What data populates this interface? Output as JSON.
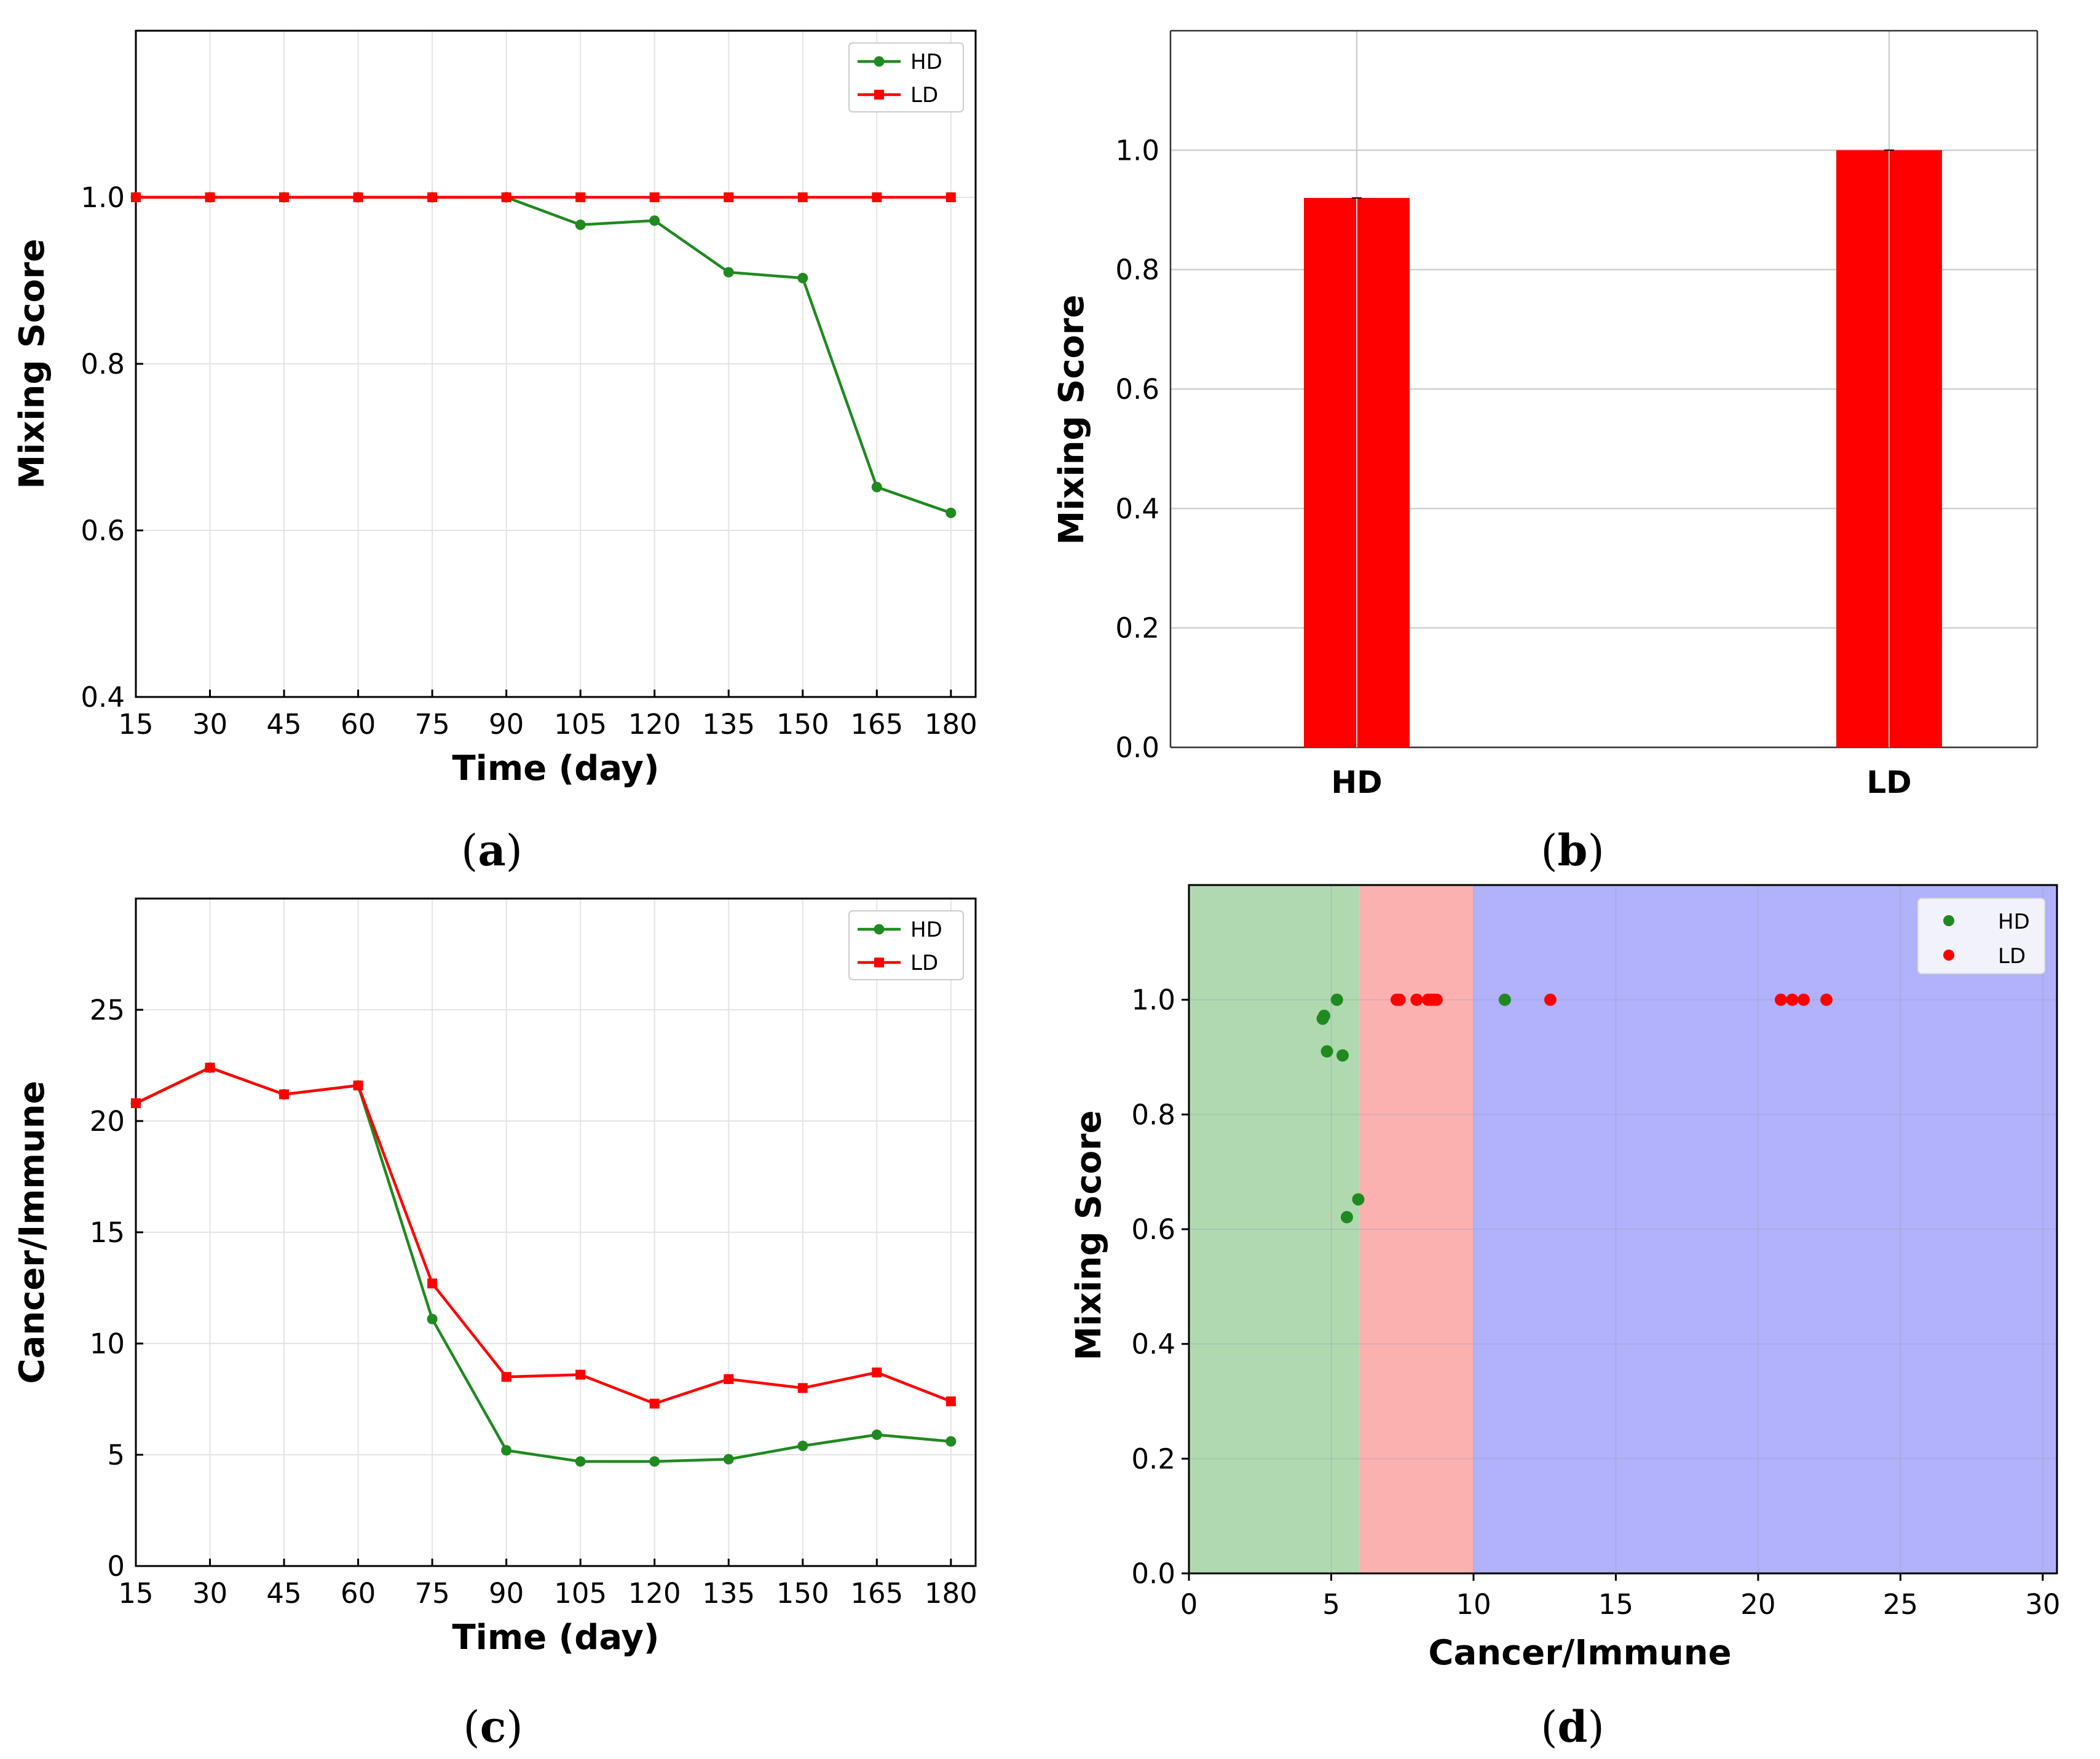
{
  "colors": {
    "hd": "#1f8a1f",
    "ld": "#ff0000",
    "bar": "#ff0000",
    "region_green": "#b0d9b0",
    "region_red": "#fcb1b1",
    "region_blue": "#b1b1fc",
    "grid": "#e3e3e3"
  },
  "panel_labels": {
    "a": {
      "open": "(",
      "letter": "a",
      "close": ")"
    },
    "b": {
      "open": "(",
      "letter": "b",
      "close": ")"
    },
    "c": {
      "open": "(",
      "letter": "c",
      "close": ")"
    },
    "d": {
      "open": "(",
      "letter": "d",
      "close": ")"
    }
  },
  "chart_data": [
    {
      "id": "a",
      "type": "line",
      "title": "",
      "xlabel": "Time (day)",
      "ylabel": "Mixing Score",
      "x": [
        15,
        30,
        45,
        60,
        75,
        90,
        105,
        120,
        135,
        150,
        165,
        180
      ],
      "xticks": [
        "15",
        "30",
        "45",
        "60",
        "75",
        "90",
        "105",
        "120",
        "135",
        "150",
        "165",
        "180"
      ],
      "xlim": [
        15,
        185
      ],
      "ylim": [
        0.4,
        1.2
      ],
      "yticks": [
        "0.4",
        "0.6",
        "0.8",
        "1.0"
      ],
      "ytick_values": [
        0.4,
        0.6,
        0.8,
        1.0
      ],
      "grid": true,
      "legend_position": "top-right",
      "series": [
        {
          "name": "HD",
          "color": "#1f8a1f",
          "marker": "circle",
          "values": [
            1.0,
            1.0,
            1.0,
            1.0,
            1.0,
            1.0,
            0.967,
            0.972,
            0.91,
            0.903,
            0.652,
            0.621
          ]
        },
        {
          "name": "LD",
          "color": "#ff0000",
          "marker": "square",
          "values": [
            1.0,
            1.0,
            1.0,
            1.0,
            1.0,
            1.0,
            1.0,
            1.0,
            1.0,
            1.0,
            1.0,
            1.0
          ]
        }
      ]
    },
    {
      "id": "b",
      "type": "bar",
      "title": "",
      "xlabel": "",
      "ylabel": "Mixing Score",
      "categories": [
        "HD",
        "LD"
      ],
      "values": [
        0.92,
        1.0
      ],
      "ylim": [
        0.0,
        1.2
      ],
      "yticks": [
        "0.0",
        "0.2",
        "0.4",
        "0.6",
        "0.8",
        "1.0"
      ],
      "ytick_values": [
        0.0,
        0.2,
        0.4,
        0.6,
        0.8,
        1.0
      ],
      "grid": true
    },
    {
      "id": "c",
      "type": "line",
      "title": "",
      "xlabel": "Time (day)",
      "ylabel": "Cancer/Immune",
      "x": [
        15,
        30,
        45,
        60,
        75,
        90,
        105,
        120,
        135,
        150,
        165,
        180
      ],
      "xticks": [
        "15",
        "30",
        "45",
        "60",
        "75",
        "90",
        "105",
        "120",
        "135",
        "150",
        "165",
        "180"
      ],
      "xlim": [
        15,
        185
      ],
      "ylim": [
        0,
        30
      ],
      "yticks": [
        "0",
        "5",
        "10",
        "15",
        "20",
        "25"
      ],
      "ytick_values": [
        0,
        5,
        10,
        15,
        20,
        25
      ],
      "grid": true,
      "legend_position": "top-right",
      "series": [
        {
          "name": "HD",
          "color": "#1f8a1f",
          "marker": "circle",
          "values": [
            20.8,
            22.4,
            21.2,
            21.6,
            11.1,
            5.2,
            4.7,
            4.7,
            4.8,
            5.4,
            5.9,
            5.6
          ]
        },
        {
          "name": "LD",
          "color": "#ff0000",
          "marker": "square",
          "values": [
            20.8,
            22.4,
            21.2,
            21.6,
            12.7,
            8.5,
            8.6,
            7.3,
            8.4,
            8.0,
            8.7,
            7.4
          ]
        }
      ]
    },
    {
      "id": "d",
      "type": "scatter",
      "title": "",
      "xlabel": "Cancer/Immune",
      "ylabel": "Mixing Score",
      "xlim": [
        0,
        30.5
      ],
      "ylim": [
        0.0,
        1.2
      ],
      "xticks": [
        "0",
        "5",
        "10",
        "15",
        "20",
        "25",
        "30"
      ],
      "xtick_values": [
        0,
        5,
        10,
        15,
        20,
        25,
        30
      ],
      "yticks": [
        "0.0",
        "0.2",
        "0.4",
        "0.6",
        "0.8",
        "1.0"
      ],
      "ytick_values": [
        0.0,
        0.2,
        0.4,
        0.6,
        0.8,
        1.0
      ],
      "grid": true,
      "legend_position": "top-right",
      "regions": [
        {
          "from": 0,
          "to": 6,
          "color": "#b0d9b0"
        },
        {
          "from": 6,
          "to": 10,
          "color": "#fcb1b1"
        },
        {
          "from": 10,
          "to": 30.5,
          "color": "#b1b1fc"
        }
      ],
      "series": [
        {
          "name": "HD",
          "color": "#1f8a1f",
          "points": [
            [
              4.7,
              0.967
            ],
            [
              4.75,
              0.972
            ],
            [
              4.85,
              0.91
            ],
            [
              5.2,
              1.0
            ],
            [
              5.4,
              0.903
            ],
            [
              5.55,
              0.621
            ],
            [
              5.95,
              0.652
            ],
            [
              11.1,
              1.0
            ]
          ]
        },
        {
          "name": "LD",
          "color": "#ff0000",
          "points": [
            [
              7.3,
              1.0
            ],
            [
              7.4,
              1.0
            ],
            [
              8.0,
              1.0
            ],
            [
              8.4,
              1.0
            ],
            [
              8.5,
              1.0
            ],
            [
              8.6,
              1.0
            ],
            [
              8.7,
              1.0
            ],
            [
              12.7,
              1.0
            ],
            [
              20.8,
              1.0
            ],
            [
              21.2,
              1.0
            ],
            [
              21.6,
              1.0
            ],
            [
              22.4,
              1.0
            ]
          ]
        }
      ]
    }
  ]
}
